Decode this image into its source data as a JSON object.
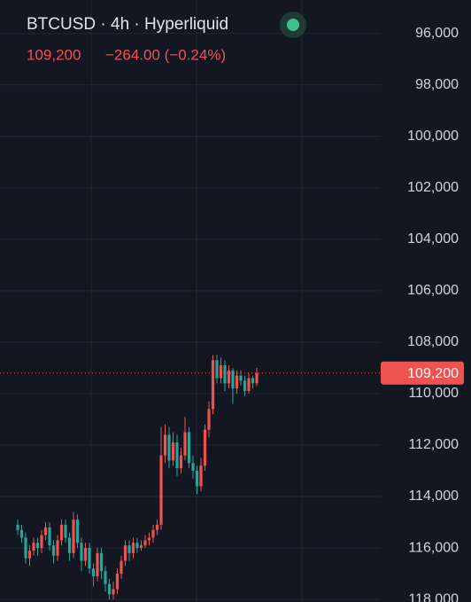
{
  "chart_data": {
    "type": "candlestick",
    "title": "BTCUSD · 4h · Hyperliquid",
    "last_price": {
      "value": 109200,
      "label": "109,200"
    },
    "change": "−264.00 (−0.24%)",
    "up_color": "#26a69a",
    "down_color": "#ef5350",
    "y_inverted": true,
    "ylim": [
      94700,
      118100
    ],
    "yticks": [
      {
        "value": 96000,
        "label": "96,000"
      },
      {
        "value": 98000,
        "label": "98,000"
      },
      {
        "value": 100000,
        "label": "100,000"
      },
      {
        "value": 102000,
        "label": "102,000"
      },
      {
        "value": 104000,
        "label": "104,000"
      },
      {
        "value": 106000,
        "label": "106,000"
      },
      {
        "value": 108000,
        "label": "108,000"
      },
      {
        "value": 110000,
        "label": "110,000"
      },
      {
        "value": 112000,
        "label": "112,000"
      },
      {
        "value": 114000,
        "label": "114,000"
      },
      {
        "value": 116000,
        "label": "116,000"
      },
      {
        "value": 118000,
        "label": "118,000"
      }
    ],
    "grid": true,
    "open": [
      115100,
      115300,
      115600,
      116400,
      116100,
      115800,
      116000,
      115500,
      115200,
      115900,
      116300,
      115700,
      115100,
      115600,
      116200,
      114900,
      115800,
      116500,
      116000,
      116800,
      117100,
      116200,
      116900,
      117400,
      117800,
      117600,
      117000,
      116500,
      115900,
      116200,
      115800,
      116000,
      115900,
      115700,
      115600,
      115300,
      115100,
      112400,
      111600,
      112600,
      111900,
      112900,
      112400,
      111500,
      112700,
      113000,
      113600,
      112800,
      111400,
      110600,
      108700,
      109400,
      108900,
      109600,
      109100,
      109800,
      109300,
      109500,
      109900,
      109400,
      109600
    ],
    "high": [
      115500,
      115800,
      116600,
      116700,
      116300,
      116300,
      116200,
      115700,
      116100,
      116600,
      116500,
      115900,
      115800,
      116500,
      116400,
      116000,
      116900,
      116700,
      117000,
      117500,
      117300,
      117200,
      117700,
      118000,
      118000,
      117800,
      117200,
      116700,
      116500,
      116400,
      116200,
      116100,
      116000,
      115900,
      115800,
      115500,
      115300,
      112700,
      112900,
      112800,
      113200,
      113100,
      112600,
      112900,
      113300,
      113900,
      113800,
      113000,
      111700,
      110800,
      109600,
      109600,
      109900,
      109800,
      110400,
      110000,
      109700,
      110100,
      110000,
      109800,
      109700
    ],
    "low": [
      114900,
      115100,
      115400,
      115900,
      115600,
      115600,
      115300,
      115000,
      115000,
      115700,
      115500,
      114900,
      114900,
      115400,
      114600,
      114700,
      115600,
      115800,
      115800,
      116600,
      116000,
      116000,
      116700,
      117200,
      117300,
      116800,
      116300,
      115700,
      115700,
      115600,
      115600,
      115700,
      115500,
      115400,
      115100,
      114900,
      111300,
      111200,
      111300,
      111500,
      111600,
      112100,
      110900,
      111300,
      112400,
      112800,
      112500,
      111200,
      110300,
      108500,
      108500,
      108600,
      108700,
      108900,
      109000,
      109100,
      109100,
      109300,
      109200,
      109300,
      109000
    ],
    "close": [
      115300,
      115600,
      116400,
      116100,
      115800,
      116000,
      115500,
      115200,
      115900,
      116300,
      115700,
      115100,
      115600,
      116200,
      114900,
      115800,
      116500,
      116000,
      116800,
      117100,
      116200,
      116900,
      117400,
      117800,
      117600,
      117000,
      116500,
      115900,
      116200,
      115800,
      116000,
      115900,
      115700,
      115600,
      115300,
      115100,
      112400,
      111600,
      112600,
      111900,
      112900,
      112400,
      111500,
      112700,
      113000,
      113600,
      112800,
      111400,
      110600,
      108700,
      109400,
      108900,
      109600,
      109100,
      109800,
      109300,
      109500,
      109900,
      109400,
      109600,
      109200
    ]
  }
}
